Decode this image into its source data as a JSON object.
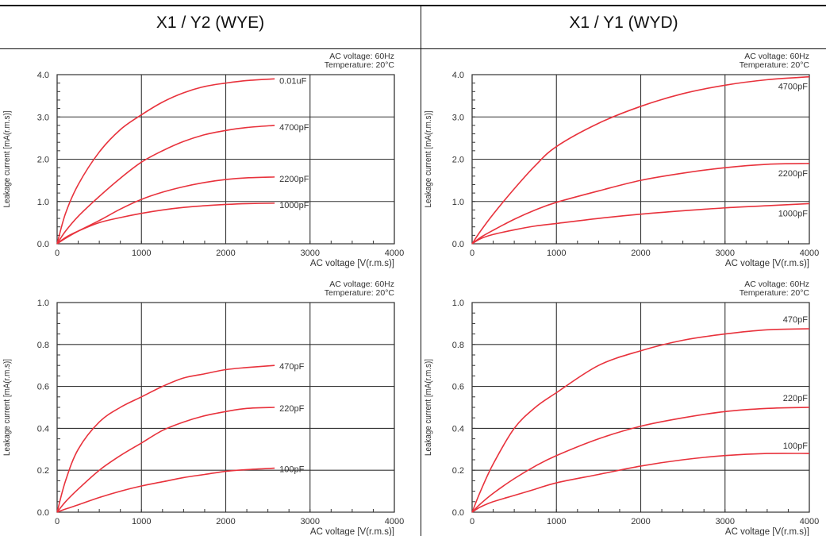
{
  "columns": [
    {
      "title": "X1 / Y2 (WYE)"
    },
    {
      "title": "X1 / Y1 (WYD)"
    }
  ],
  "chart_data": [
    {
      "type": "line",
      "title": "",
      "xlabel": "AC voltage [V(r.m.s)]",
      "ylabel": "Leakage current [mA(r.m.s)]",
      "notes": [
        "AC voltage: 60Hz",
        "Temperature: 20°C"
      ],
      "xlim": [
        0,
        4000
      ],
      "ylim": [
        0,
        4.0
      ],
      "xticks": [
        "0",
        "1000",
        "2000",
        "3000",
        "4000"
      ],
      "yticks": [
        "0.0",
        "1.0",
        "2.0",
        "3.0",
        "4.0"
      ],
      "grid": true,
      "line_color": "#e8323c",
      "series": [
        {
          "name": "0.01uF",
          "x": [
            0,
            100,
            250,
            500,
            750,
            1000,
            1250,
            1500,
            1750,
            2000,
            2250,
            2580
          ],
          "y": [
            0,
            0.72,
            1.4,
            2.17,
            2.7,
            3.05,
            3.35,
            3.57,
            3.72,
            3.8,
            3.86,
            3.9
          ]
        },
        {
          "name": "4700pF",
          "x": [
            0,
            100,
            250,
            500,
            750,
            1000,
            1250,
            1500,
            1750,
            2000,
            2250,
            2580
          ],
          "y": [
            0,
            0.3,
            0.65,
            1.12,
            1.55,
            1.93,
            2.2,
            2.42,
            2.58,
            2.68,
            2.75,
            2.8
          ]
        },
        {
          "name": "2200pF",
          "x": [
            0,
            100,
            250,
            500,
            750,
            1000,
            1250,
            1500,
            1750,
            2000,
            2250,
            2580
          ],
          "y": [
            0,
            0.13,
            0.3,
            0.55,
            0.82,
            1.05,
            1.22,
            1.35,
            1.45,
            1.52,
            1.56,
            1.58
          ]
        },
        {
          "name": "1000pF",
          "x": [
            0,
            100,
            250,
            500,
            750,
            1000,
            1250,
            1500,
            1750,
            2000,
            2250,
            2580
          ],
          "y": [
            0,
            0.15,
            0.3,
            0.5,
            0.62,
            0.72,
            0.8,
            0.86,
            0.9,
            0.93,
            0.95,
            0.96
          ]
        }
      ]
    },
    {
      "type": "line",
      "title": "",
      "xlabel": "AC voltage [V(r.m.s)]",
      "ylabel": "Leakage current [mA(r.m.s)]",
      "notes": [
        "AC voltage: 60Hz",
        "Temperature: 20°C"
      ],
      "xlim": [
        0,
        4000
      ],
      "ylim": [
        0,
        4.0
      ],
      "xticks": [
        "0",
        "1000",
        "2000",
        "3000",
        "4000"
      ],
      "yticks": [
        "0.0",
        "1.0",
        "2.0",
        "3.0",
        "4.0"
      ],
      "grid": true,
      "line_color": "#e8323c",
      "series": [
        {
          "name": "4700pF",
          "x": [
            0,
            100,
            250,
            500,
            750,
            1000,
            1500,
            2000,
            2500,
            3000,
            3500,
            4000
          ],
          "y": [
            0,
            0.3,
            0.7,
            1.3,
            1.85,
            2.3,
            2.85,
            3.25,
            3.55,
            3.75,
            3.88,
            3.95
          ]
        },
        {
          "name": "2200pF",
          "x": [
            0,
            100,
            250,
            500,
            750,
            1000,
            1500,
            2000,
            2500,
            3000,
            3500,
            4000
          ],
          "y": [
            0,
            0.15,
            0.32,
            0.58,
            0.8,
            0.98,
            1.25,
            1.5,
            1.67,
            1.8,
            1.88,
            1.9
          ]
        },
        {
          "name": "1000pF",
          "x": [
            0,
            100,
            250,
            500,
            750,
            1000,
            1500,
            2000,
            2500,
            3000,
            3500,
            4000
          ],
          "y": [
            0,
            0.12,
            0.22,
            0.33,
            0.42,
            0.48,
            0.6,
            0.7,
            0.78,
            0.85,
            0.9,
            0.95
          ]
        }
      ]
    },
    {
      "type": "line",
      "title": "",
      "xlabel": "AC voltage [V(r.m.s)]",
      "ylabel": "Leakage current [mA(r.m.s)]",
      "notes": [
        "AC voltage: 60Hz",
        "Temperature: 20°C"
      ],
      "xlim": [
        0,
        4000
      ],
      "ylim": [
        0,
        1.0
      ],
      "xticks": [
        "0",
        "1000",
        "2000",
        "3000",
        "4000"
      ],
      "yticks": [
        "0.0",
        "0.2",
        "0.4",
        "0.6",
        "0.8",
        "1.0"
      ],
      "grid": true,
      "line_color": "#e8323c",
      "series": [
        {
          "name": "470pF",
          "x": [
            0,
            100,
            250,
            500,
            750,
            1000,
            1250,
            1500,
            1750,
            2000,
            2250,
            2580
          ],
          "y": [
            0,
            0.15,
            0.3,
            0.43,
            0.5,
            0.55,
            0.6,
            0.64,
            0.66,
            0.68,
            0.69,
            0.7
          ]
        },
        {
          "name": "220pF",
          "x": [
            0,
            100,
            250,
            500,
            750,
            1000,
            1250,
            1500,
            1750,
            2000,
            2250,
            2580
          ],
          "y": [
            0,
            0.05,
            0.11,
            0.2,
            0.27,
            0.33,
            0.39,
            0.43,
            0.46,
            0.48,
            0.495,
            0.5
          ]
        },
        {
          "name": "100pF",
          "x": [
            0,
            100,
            250,
            500,
            750,
            1000,
            1250,
            1500,
            1750,
            2000,
            2250,
            2580
          ],
          "y": [
            0,
            0.015,
            0.035,
            0.07,
            0.1,
            0.125,
            0.145,
            0.165,
            0.18,
            0.195,
            0.203,
            0.21
          ]
        }
      ]
    },
    {
      "type": "line",
      "title": "",
      "xlabel": "AC voltage [V(r.m.s)]",
      "ylabel": "Leakage current [mA(r.m.s)]",
      "notes": [
        "AC voltage: 60Hz",
        "Temperature: 20°C"
      ],
      "xlim": [
        0,
        4000
      ],
      "ylim": [
        0,
        1.0
      ],
      "xticks": [
        "0",
        "1000",
        "2000",
        "3000",
        "4000"
      ],
      "yticks": [
        "0.0",
        "0.2",
        "0.4",
        "0.6",
        "0.8",
        "1.0"
      ],
      "grid": true,
      "line_color": "#e8323c",
      "series": [
        {
          "name": "470pF",
          "x": [
            0,
            100,
            250,
            500,
            750,
            1000,
            1500,
            2000,
            2500,
            3000,
            3500,
            4000
          ],
          "y": [
            0,
            0.1,
            0.23,
            0.4,
            0.5,
            0.57,
            0.7,
            0.77,
            0.82,
            0.85,
            0.87,
            0.875
          ]
        },
        {
          "name": "220pF",
          "x": [
            0,
            100,
            250,
            500,
            750,
            1000,
            1500,
            2000,
            2500,
            3000,
            3500,
            4000
          ],
          "y": [
            0,
            0.04,
            0.09,
            0.16,
            0.22,
            0.27,
            0.35,
            0.41,
            0.45,
            0.48,
            0.495,
            0.5
          ]
        },
        {
          "name": "100pF",
          "x": [
            0,
            100,
            250,
            500,
            750,
            1000,
            1500,
            2000,
            2500,
            3000,
            3500,
            4000
          ],
          "y": [
            0,
            0.025,
            0.05,
            0.08,
            0.11,
            0.14,
            0.18,
            0.22,
            0.25,
            0.27,
            0.28,
            0.28
          ]
        }
      ]
    }
  ]
}
